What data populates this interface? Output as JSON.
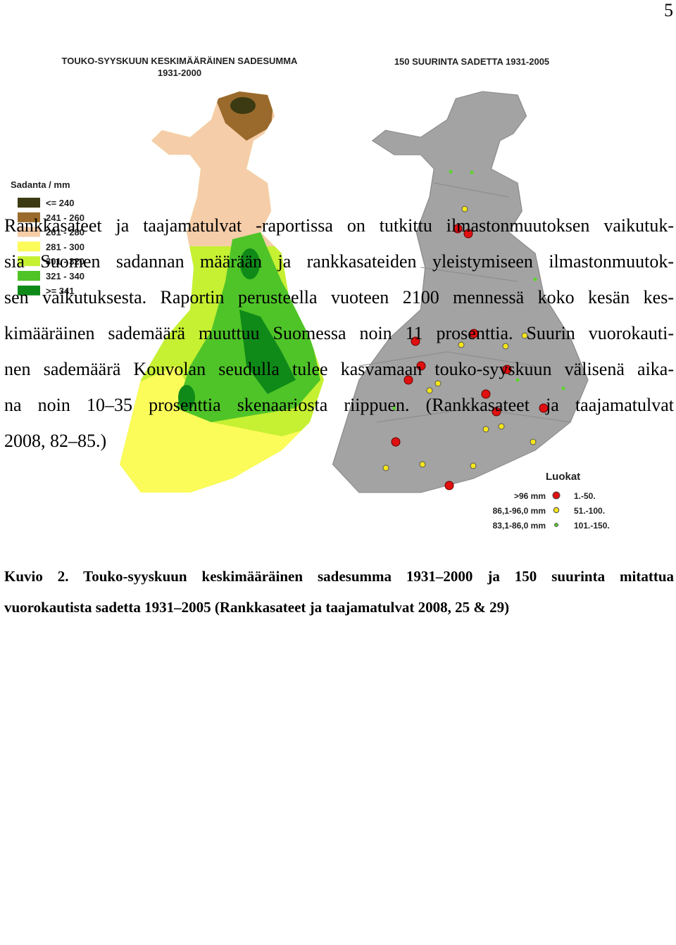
{
  "page_number": "5",
  "figure": {
    "left_map": {
      "title_lines": [
        "TOUKO-SYYSKUUN KESKIMÄÄRÄINEN SADESUMMA",
        "1931-2000"
      ],
      "legend_title": "Sadanta / mm",
      "legend": [
        {
          "label": "<= 240",
          "color": "#3b3a12"
        },
        {
          "label": "241 - 260",
          "color": "#9a6a2c"
        },
        {
          "label": "261 - 280",
          "color": "#f6cda9"
        },
        {
          "label": "281 - 300",
          "color": "#fbfb5a"
        },
        {
          "label": "301 - 320",
          "color": "#c6f032"
        },
        {
          "label": "321 - 340",
          "color": "#4fc428"
        },
        {
          "label": ">= 341",
          "color": "#0f8a18"
        }
      ]
    },
    "right_map": {
      "title": "150 SUURINTA SADETTA 1931-2005",
      "legend_title": "Luokat",
      "legend": [
        {
          "range": ">96 mm",
          "rank": "1.-50.",
          "color": "#e01010"
        },
        {
          "range": "86,1-96,0 mm",
          "rank": "51.-100.",
          "color": "#f5e61a"
        },
        {
          "range": "83,1-86,0 mm",
          "rank": "101.-150.",
          "color": "#5ad62a"
        }
      ]
    },
    "caption_label": "Kuvio 2.",
    "caption_lines": [
      "Touko-syyskuun keskimääräinen sadesumma 1931–2000 ja 150 suurinta mitattua",
      "vuorokautista sadetta 1931–2005 (Rankkasateet ja taajamatulvat 2008, 25 & 29)"
    ]
  },
  "paragraph_lines": [
    "Rankkasateet ja taajamatulvat -raportissa on tutkittu ilmastonmuutoksen vaikutuk-",
    "sia Suomen sadannan määrään ja rankkasateiden yleistymiseen ilmastonmuutok-",
    "sen vaikutuksesta. Raportin perusteella vuoteen 2100 mennessä koko kesän kes-",
    "kimääräinen sademäärä muuttuu Suomessa noin 11 prosenttia. Suurin vuorokauti-",
    "nen sademäärä Kouvolan seudulla tulee kasvamaan touko-syyskuun välisenä aika-",
    "na noin 10–35 prosenttia skenaariosta riippuen. (Rankkasateet ja taajamatulvat",
    "2008, 82–85.)"
  ]
}
